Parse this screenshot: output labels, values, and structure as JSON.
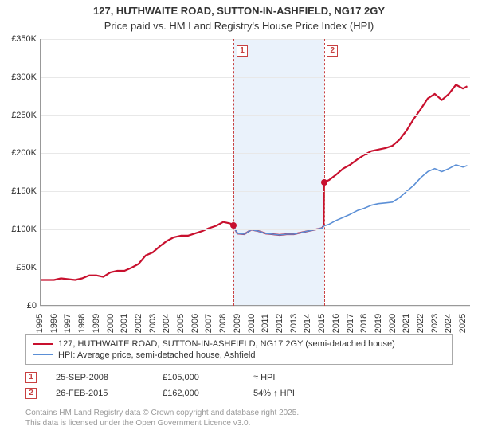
{
  "title_line1": "127, HUTHWAITE ROAD, SUTTON-IN-ASHFIELD, NG17 2GY",
  "title_line2": "Price paid vs. HM Land Registry's House Price Index (HPI)",
  "chart": {
    "type": "line",
    "background_color": "#ffffff",
    "grid_color": "#e8e8e8",
    "axis_color": "#999999",
    "shade_color": "#eaf2fb",
    "x_min": 1995,
    "x_max": 2025.5,
    "y_min": 0,
    "y_max": 350000,
    "y_ticks": [
      0,
      50000,
      100000,
      150000,
      200000,
      250000,
      300000,
      350000
    ],
    "y_tick_labels": [
      "£0",
      "£50K",
      "£100K",
      "£150K",
      "£200K",
      "£250K",
      "£300K",
      "£350K"
    ],
    "x_ticks": [
      1995,
      1996,
      1997,
      1998,
      1999,
      2000,
      2001,
      2002,
      2003,
      2004,
      2005,
      2006,
      2007,
      2008,
      2009,
      2010,
      2011,
      2012,
      2013,
      2014,
      2015,
      2016,
      2017,
      2018,
      2019,
      2020,
      2021,
      2022,
      2023,
      2024,
      2025
    ],
    "shade_band": {
      "x_start": 2008.73,
      "x_end": 2015.16
    },
    "dashed_lines": [
      {
        "x": 2008.73,
        "color": "#c84040"
      },
      {
        "x": 2015.16,
        "color": "#c84040"
      }
    ],
    "event_markers_inchart": [
      {
        "num": "1",
        "x": 2008.95,
        "border": "#c84040",
        "text_color": "#c84040"
      },
      {
        "num": "2",
        "x": 2015.35,
        "border": "#c84040",
        "text_color": "#c84040"
      }
    ],
    "series": [
      {
        "name": "price_paid",
        "color": "#c8102e",
        "width": 2.2,
        "data": [
          [
            1995,
            34000
          ],
          [
            1996,
            34000
          ],
          [
            1996.5,
            36000
          ],
          [
            1997,
            35000
          ],
          [
            1997.5,
            34000
          ],
          [
            1998,
            36000
          ],
          [
            1998.5,
            40000
          ],
          [
            1999,
            40000
          ],
          [
            1999.5,
            38000
          ],
          [
            2000,
            44000
          ],
          [
            2000.5,
            46000
          ],
          [
            2001,
            46000
          ],
          [
            2001.5,
            50000
          ],
          [
            2002,
            55000
          ],
          [
            2002.5,
            66000
          ],
          [
            2003,
            70000
          ],
          [
            2003.5,
            78000
          ],
          [
            2004,
            85000
          ],
          [
            2004.5,
            90000
          ],
          [
            2005,
            92000
          ],
          [
            2005.5,
            92000
          ],
          [
            2006,
            95000
          ],
          [
            2006.5,
            98000
          ],
          [
            2007,
            102000
          ],
          [
            2007.5,
            105000
          ],
          [
            2008,
            110000
          ],
          [
            2008.5,
            108000
          ],
          [
            2008.73,
            105000
          ],
          [
            2009,
            95000
          ],
          [
            2009.5,
            94000
          ],
          [
            2010,
            100000
          ],
          [
            2010.5,
            98000
          ],
          [
            2011,
            95000
          ],
          [
            2011.5,
            94000
          ],
          [
            2012,
            93000
          ],
          [
            2012.5,
            94000
          ],
          [
            2013,
            94000
          ],
          [
            2013.5,
            96000
          ],
          [
            2014,
            98000
          ],
          [
            2014.5,
            100000
          ],
          [
            2015,
            102000
          ],
          [
            2015.12,
            105000
          ],
          [
            2015.16,
            162000
          ],
          [
            2015.5,
            165000
          ],
          [
            2016,
            172000
          ],
          [
            2016.5,
            180000
          ],
          [
            2017,
            185000
          ],
          [
            2017.5,
            192000
          ],
          [
            2018,
            198000
          ],
          [
            2018.5,
            203000
          ],
          [
            2019,
            205000
          ],
          [
            2019.5,
            207000
          ],
          [
            2020,
            210000
          ],
          [
            2020.5,
            218000
          ],
          [
            2021,
            230000
          ],
          [
            2021.5,
            245000
          ],
          [
            2022,
            258000
          ],
          [
            2022.5,
            272000
          ],
          [
            2023,
            278000
          ],
          [
            2023.5,
            270000
          ],
          [
            2024,
            278000
          ],
          [
            2024.5,
            290000
          ],
          [
            2025,
            285000
          ],
          [
            2025.3,
            288000
          ]
        ]
      },
      {
        "name": "hpi",
        "color": "#5b8fd6",
        "width": 1.6,
        "data": [
          [
            2008.73,
            105000
          ],
          [
            2009,
            95000
          ],
          [
            2009.5,
            94000
          ],
          [
            2010,
            100000
          ],
          [
            2010.5,
            98000
          ],
          [
            2011,
            95000
          ],
          [
            2011.5,
            94000
          ],
          [
            2012,
            93000
          ],
          [
            2012.5,
            94000
          ],
          [
            2013,
            94000
          ],
          [
            2013.5,
            96000
          ],
          [
            2014,
            98000
          ],
          [
            2014.5,
            100000
          ],
          [
            2015,
            102000
          ],
          [
            2015.16,
            105000
          ],
          [
            2015.5,
            107000
          ],
          [
            2016,
            112000
          ],
          [
            2016.5,
            116000
          ],
          [
            2017,
            120000
          ],
          [
            2017.5,
            125000
          ],
          [
            2018,
            128000
          ],
          [
            2018.5,
            132000
          ],
          [
            2019,
            134000
          ],
          [
            2019.5,
            135000
          ],
          [
            2020,
            136000
          ],
          [
            2020.5,
            142000
          ],
          [
            2021,
            150000
          ],
          [
            2021.5,
            158000
          ],
          [
            2022,
            168000
          ],
          [
            2022.5,
            176000
          ],
          [
            2023,
            180000
          ],
          [
            2023.5,
            176000
          ],
          [
            2024,
            180000
          ],
          [
            2024.5,
            185000
          ],
          [
            2025,
            182000
          ],
          [
            2025.3,
            184000
          ]
        ]
      }
    ],
    "points": [
      {
        "x": 2008.73,
        "y": 105000,
        "color": "#c8102e"
      },
      {
        "x": 2015.16,
        "y": 162000,
        "color": "#c8102e"
      }
    ]
  },
  "legend": {
    "items": [
      {
        "color": "#c8102e",
        "width": 2.5,
        "label": "127, HUTHWAITE ROAD, SUTTON-IN-ASHFIELD, NG17 2GY (semi-detached house)"
      },
      {
        "color": "#5b8fd6",
        "width": 1.6,
        "label": "HPI: Average price, semi-detached house, Ashfield"
      }
    ]
  },
  "events": [
    {
      "num": "1",
      "border": "#c84040",
      "text_color": "#c84040",
      "date": "25-SEP-2008",
      "price": "£105,000",
      "delta": "≈ HPI"
    },
    {
      "num": "2",
      "border": "#c84040",
      "text_color": "#c84040",
      "date": "26-FEB-2015",
      "price": "£162,000",
      "delta": "54% ↑ HPI"
    }
  ],
  "footer_line1": "Contains HM Land Registry data © Crown copyright and database right 2025.",
  "footer_line2": "This data is licensed under the Open Government Licence v3.0."
}
